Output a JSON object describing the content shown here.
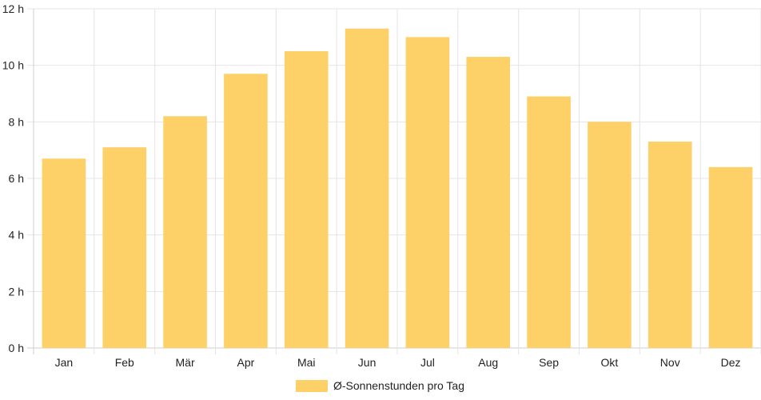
{
  "chart_data": {
    "type": "bar",
    "categories": [
      "Jan",
      "Feb",
      "Mär",
      "Apr",
      "Mai",
      "Jun",
      "Jul",
      "Aug",
      "Sep",
      "Okt",
      "Nov",
      "Dez"
    ],
    "series": [
      {
        "name": "Ø-Sonnenstunden pro Tag",
        "color": "#FDD068",
        "values": [
          6.7,
          7.1,
          8.2,
          9.7,
          10.5,
          11.3,
          11.0,
          10.3,
          8.9,
          8.0,
          7.3,
          6.4
        ]
      }
    ],
    "y_ticks": [
      "0 h",
      "2 h",
      "4 h",
      "6 h",
      "8 h",
      "10 h",
      "12 h"
    ],
    "ylim": [
      0,
      12
    ],
    "grid": true,
    "legend_position": "bottom-center"
  }
}
